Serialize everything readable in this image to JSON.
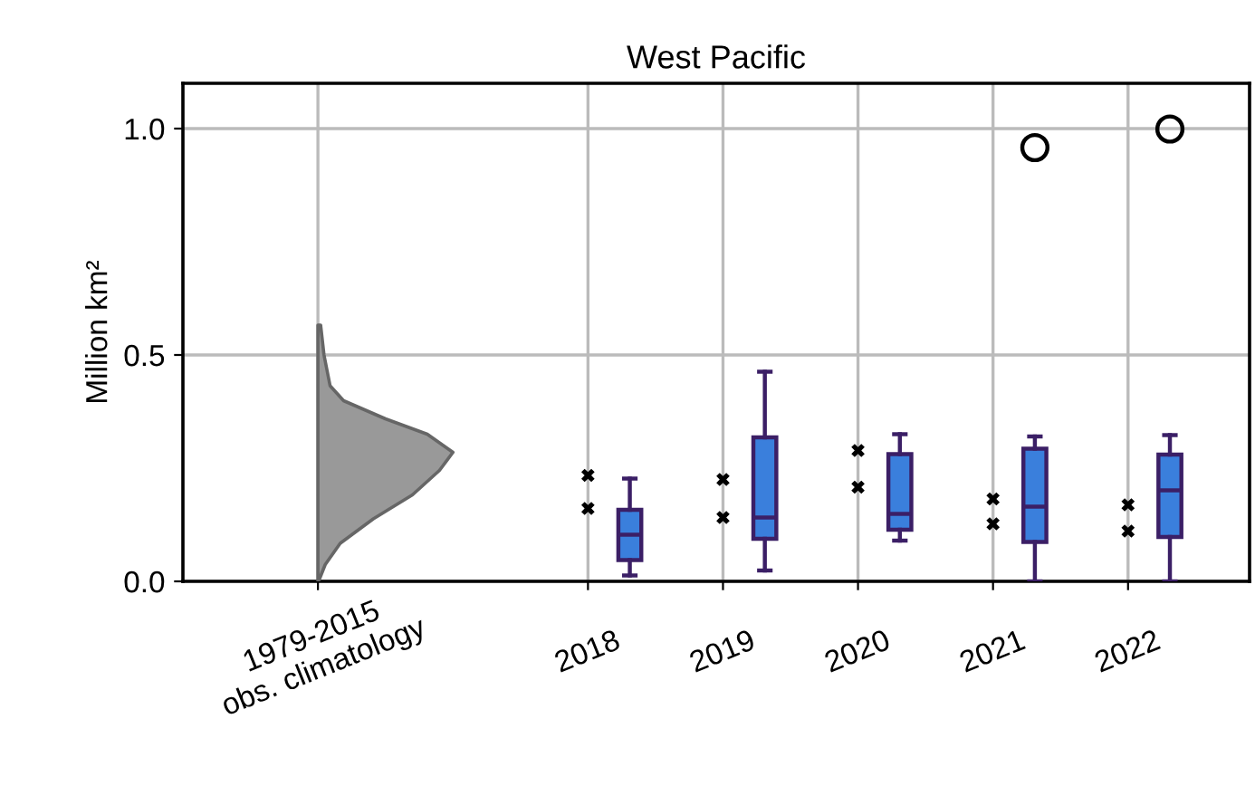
{
  "chart_data": {
    "type": "box",
    "title": "West Pacific",
    "ylabel": "Million km²",
    "categories": [
      "1979-2015\nobs. climatology",
      null,
      "2018",
      "2019",
      "2020",
      "2021",
      "2022"
    ],
    "ylim": [
      0,
      1.1
    ],
    "yticks": [
      {
        "value": 0,
        "label": "0.0"
      },
      0.5,
      {
        "value": 1,
        "label": "1.0"
      }
    ],
    "grid": true,
    "series": [
      {
        "type": "scatter",
        "color": "#000000",
        "marker": "cross",
        "values": [
          null,
          null,
          0.234,
          0.225,
          0.289,
          0.182,
          0.169
        ]
      },
      {
        "type": "scatter",
        "color": "#000000",
        "marker": "cross",
        "values": [
          null,
          null,
          0.161,
          0.141,
          0.208,
          0.127,
          0.111
        ]
      },
      {
        "color": "#3a7fdc",
        "boxes": [
          null,
          null,
          {
            "low": 0.013,
            "q1": 0.047,
            "median": 0.103,
            "q3": 0.158,
            "high": 0.227
          },
          {
            "low": 0.024,
            "q1": 0.094,
            "median": 0.141,
            "q3": 0.318,
            "high": 0.463
          },
          {
            "low": 0.09,
            "q1": 0.114,
            "median": 0.149,
            "q3": 0.281,
            "high": 0.325
          },
          {
            "low": 0.0,
            "q1": 0.087,
            "median": 0.165,
            "q3": 0.293,
            "high": 0.32,
            "outliers": [
              0.958
            ]
          },
          {
            "low": 0.0,
            "q1": 0.098,
            "median": 0.201,
            "q3": 0.28,
            "high": 0.323,
            "outliers": [
              0.999
            ]
          }
        ]
      }
    ]
  }
}
